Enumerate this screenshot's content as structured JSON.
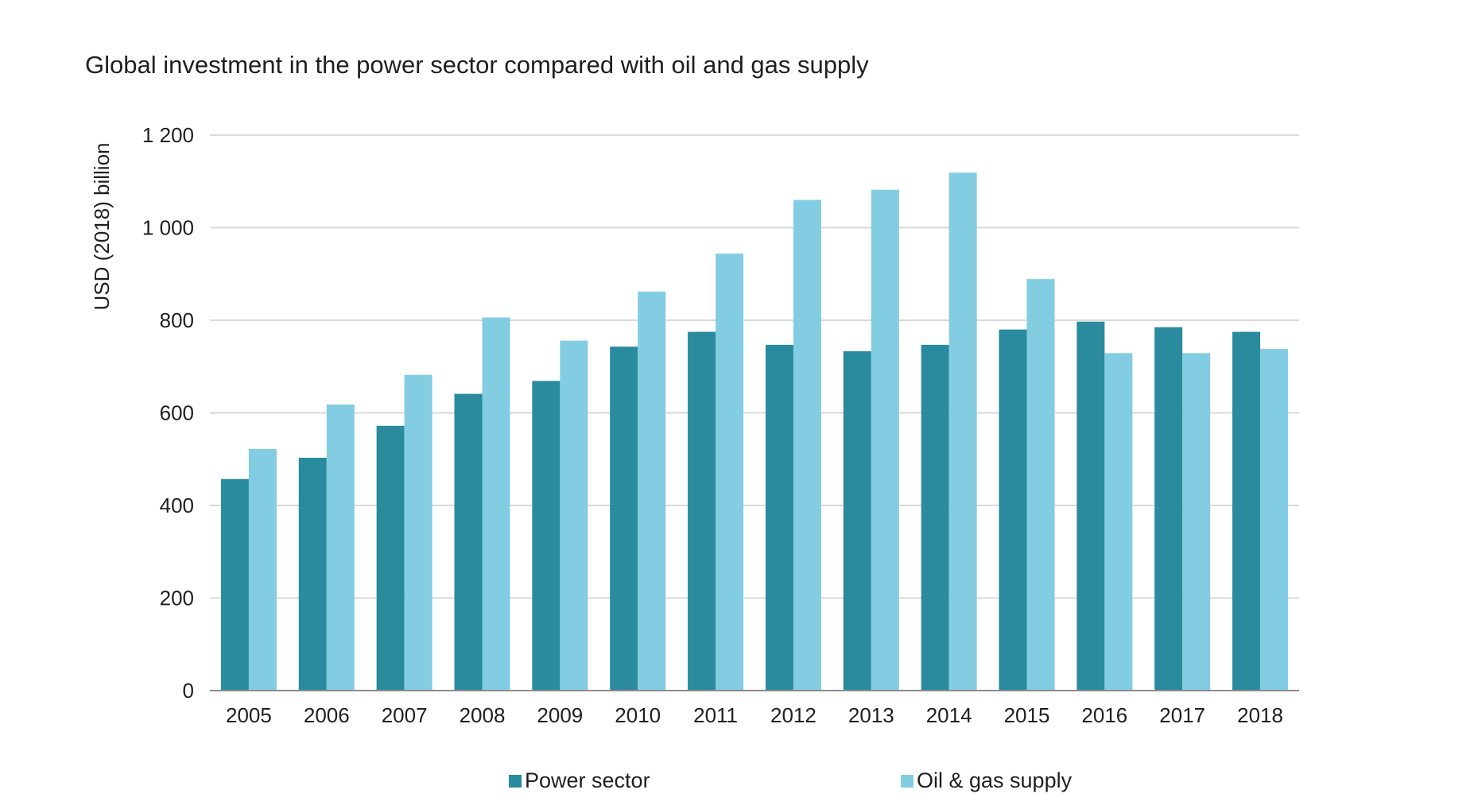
{
  "chart_data": {
    "type": "bar",
    "title": "Global investment in the power sector compared with oil and gas supply",
    "xlabel": "",
    "ylabel": "USD (2018) billion",
    "categories": [
      "2005",
      "2006",
      "2007",
      "2008",
      "2009",
      "2010",
      "2011",
      "2012",
      "2013",
      "2014",
      "2015",
      "2016",
      "2017",
      "2018"
    ],
    "series": [
      {
        "name": "Power sector",
        "color": "#2a8a9e",
        "values": [
          457,
          503,
          572,
          641,
          669,
          743,
          775,
          747,
          733,
          747,
          780,
          797,
          785,
          775
        ]
      },
      {
        "name": "Oil & gas supply",
        "color": "#82cde2",
        "values": [
          522,
          618,
          682,
          806,
          756,
          862,
          944,
          1060,
          1082,
          1119,
          889,
          729,
          729,
          738
        ]
      }
    ],
    "ylim": [
      0,
      1200
    ],
    "yticks": [
      0,
      200,
      400,
      600,
      800,
      1000,
      1200
    ],
    "ytick_labels": [
      "0",
      "200",
      "400",
      "600",
      "800",
      "1 000",
      "1 200"
    ],
    "grid": true,
    "legend_position": "bottom"
  }
}
